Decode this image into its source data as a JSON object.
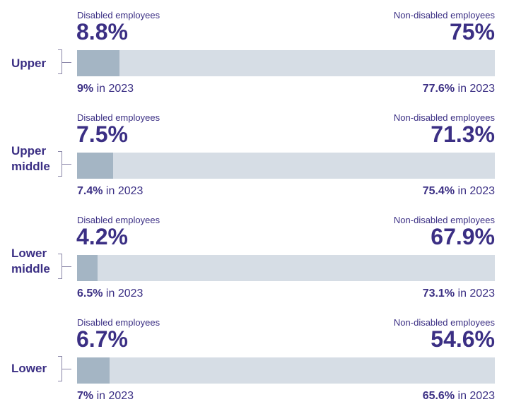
{
  "chart_data": {
    "type": "bar",
    "categories": [
      "Upper",
      "Upper middle",
      "Lower middle",
      "Lower"
    ],
    "series": [
      {
        "name": "Disabled employees",
        "values": [
          8.8,
          7.5,
          4.2,
          6.7
        ]
      },
      {
        "name": "Non-disabled employees",
        "values": [
          75,
          71.3,
          67.9,
          54.6
        ]
      }
    ],
    "rows": [
      {
        "label": "Upper",
        "disabled_caption": "Disabled employees",
        "disabled_value": "8.8%",
        "disabled_fill": 8.8,
        "nondisabled_caption": "Non-disabled employees",
        "nondisabled_value": "75%",
        "prev_disabled": "9%",
        "prev_nondisabled": "77.6%",
        "prev_suffix": " in 2023"
      },
      {
        "label": "Upper\nmiddle",
        "disabled_caption": "Disabled employees",
        "disabled_value": "7.5%",
        "disabled_fill": 7.5,
        "nondisabled_caption": "Non-disabled employees",
        "nondisabled_value": "71.3%",
        "prev_disabled": "7.4%",
        "prev_nondisabled": "75.4%",
        "prev_suffix": " in 2023"
      },
      {
        "label": "Lower\nmiddle",
        "disabled_caption": "Disabled employees",
        "disabled_value": "4.2%",
        "disabled_fill": 4.2,
        "nondisabled_caption": "Non-disabled employees",
        "nondisabled_value": "67.9%",
        "prev_disabled": "6.5%",
        "prev_nondisabled": "73.1%",
        "prev_suffix": " in 2023"
      },
      {
        "label": "Lower",
        "disabled_caption": "Disabled employees",
        "disabled_value": "6.7%",
        "disabled_fill": 6.7,
        "nondisabled_caption": "Non-disabled employees",
        "nondisabled_value": "54.6%",
        "prev_disabled": "7%",
        "prev_nondisabled": "65.6%",
        "prev_suffix": " in 2023"
      }
    ]
  },
  "colors": {
    "text": "#3b2f84",
    "bar_track": "#d6dde5",
    "bar_fill": "#a4b5c4",
    "bracket": "#8a86a8"
  }
}
